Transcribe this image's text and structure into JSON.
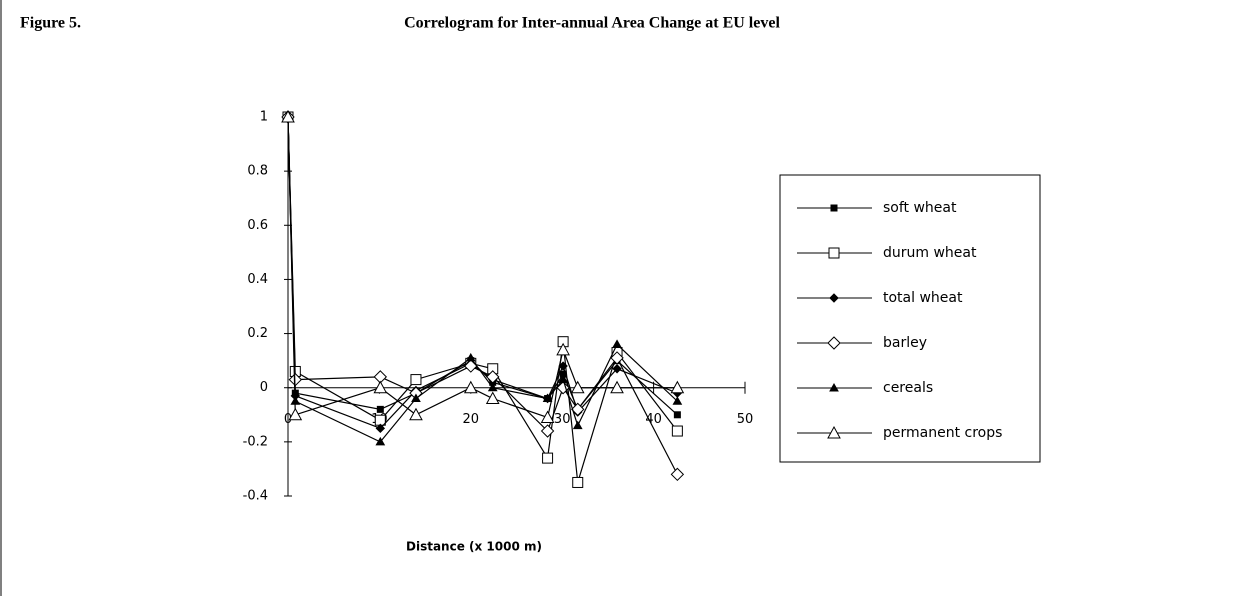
{
  "figure_label": "Figure 5.",
  "chart_data": {
    "type": "line",
    "title": "Correlogram for Inter-annual Area Change at EU level",
    "xlabel": "Distance (x 1000 m)",
    "x": [
      0,
      0.8,
      10.1,
      14,
      20,
      22.4,
      28.4,
      30.1,
      31.7,
      36,
      42.6
    ],
    "xlim": [
      0,
      50
    ],
    "xticks": [
      0,
      10,
      20,
      30,
      40,
      50
    ],
    "ylim": [
      -0.4,
      1
    ],
    "yticks": [
      1,
      0.8,
      0.6,
      0.4,
      0.2,
      0,
      -0.2,
      -0.4
    ],
    "legend": "right",
    "series": [
      {
        "name": "soft wheat",
        "color": "#000000",
        "marker": "square",
        "values": [
          1,
          -0.02,
          -0.08,
          -0.02,
          0.1,
          0.02,
          -0.04,
          0.05,
          -0.08,
          0.1,
          -0.1
        ]
      },
      {
        "name": "durum wheat",
        "color": "#000000",
        "marker": "square-open",
        "values": [
          1,
          0.06,
          -0.12,
          0.03,
          0.09,
          0.07,
          -0.26,
          0.17,
          -0.35,
          0.13,
          -0.16
        ]
      },
      {
        "name": "total wheat",
        "color": "#000000",
        "marker": "diamond",
        "values": [
          1,
          -0.03,
          -0.15,
          -0.01,
          0.09,
          0.03,
          -0.04,
          0.08,
          -0.09,
          0.07,
          -0.02
        ]
      },
      {
        "name": "barley",
        "color": "#000000",
        "marker": "diamond-open",
        "values": [
          1,
          0.03,
          0.04,
          -0.02,
          0.08,
          0.04,
          -0.16,
          0,
          -0.08,
          0.11,
          -0.32
        ]
      },
      {
        "name": "cereals",
        "color": "#000000",
        "marker": "triangle",
        "values": [
          1,
          -0.05,
          -0.2,
          -0.04,
          0.11,
          0,
          -0.04,
          0.03,
          -0.14,
          0.16,
          -0.05
        ]
      },
      {
        "name": "permanent crops",
        "color": "#000000",
        "marker": "triangle-open",
        "values": [
          1,
          -0.1,
          0,
          -0.1,
          0,
          -0.04,
          -0.11,
          0.14,
          0,
          0,
          0
        ]
      }
    ]
  }
}
